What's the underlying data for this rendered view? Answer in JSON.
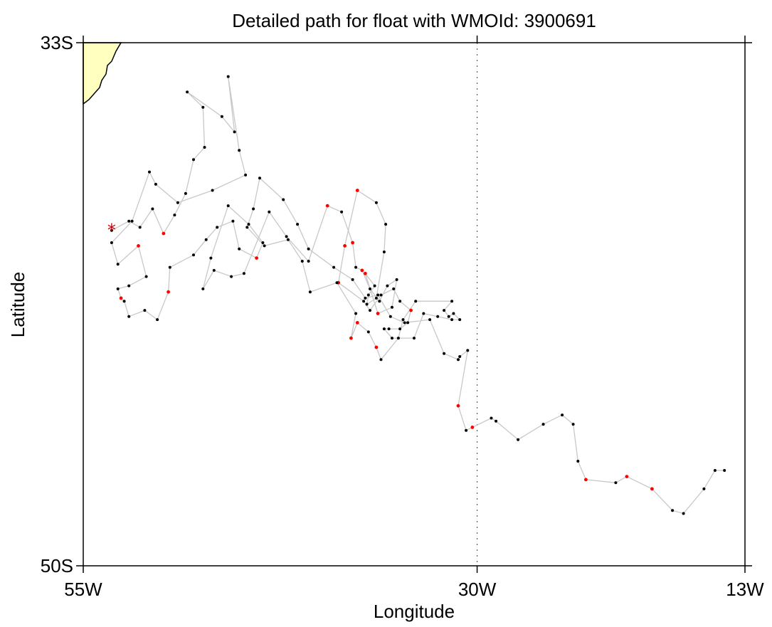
{
  "title": "Detailed path for float with WMOId: 3900691",
  "xlabel": "Longitude",
  "ylabel": "Latitude",
  "colors": {
    "land": "#ffffc0",
    "track_line": "#c8c8c8",
    "point_black": "#000000",
    "point_red": "#ff0000",
    "start_marker": "#cc0000",
    "meridian_line": "#555555"
  },
  "chart_data": {
    "type": "scatter",
    "xlim": [
      -55,
      -13
    ],
    "ylim": [
      -50,
      -33
    ],
    "x_ticks": [
      {
        "value": -55,
        "label": "55W"
      },
      {
        "value": -30,
        "label": "30W"
      },
      {
        "value": -13,
        "label": "13W"
      }
    ],
    "y_ticks": [
      {
        "value": -33,
        "label": "33S"
      },
      {
        "value": -50,
        "label": "50S"
      }
    ],
    "reference_meridian": -30,
    "start_marker": {
      "lon": -53.2,
      "lat": -39.1,
      "symbol": "*"
    },
    "track": [
      [
        -53.2,
        -39.1,
        "b"
      ],
      [
        -52.1,
        -38.8,
        "b"
      ],
      [
        -51.4,
        -39.0,
        "b"
      ],
      [
        -50.6,
        -38.4,
        "b"
      ],
      [
        -49.9,
        -39.2,
        "r"
      ],
      [
        -49.2,
        -38.6,
        "b"
      ],
      [
        -48.5,
        -37.9,
        "b"
      ],
      [
        -48.0,
        -36.8,
        "b"
      ],
      [
        -47.3,
        -36.4,
        "b"
      ],
      [
        -47.4,
        -35.1,
        "b"
      ],
      [
        -48.4,
        -34.6,
        "b"
      ],
      [
        -46.2,
        -35.4,
        "b"
      ],
      [
        -45.4,
        -35.9,
        "b"
      ],
      [
        -45.8,
        -34.1,
        "b"
      ],
      [
        -45.1,
        -36.5,
        "b"
      ],
      [
        -44.7,
        -37.3,
        "b"
      ],
      [
        -46.8,
        -37.8,
        "b"
      ],
      [
        -49.0,
        -38.2,
        "b"
      ],
      [
        -50.4,
        -37.6,
        "b"
      ],
      [
        -50.8,
        -37.2,
        "b"
      ],
      [
        -51.9,
        -38.8,
        "b"
      ],
      [
        -53.2,
        -39.5,
        "b"
      ],
      [
        -52.8,
        -40.2,
        "b"
      ],
      [
        -51.5,
        -39.6,
        "r"
      ],
      [
        -51.0,
        -40.6,
        "b"
      ],
      [
        -52.1,
        -40.9,
        "b"
      ],
      [
        -52.8,
        -41.0,
        "b"
      ],
      [
        -52.6,
        -41.3,
        "r"
      ],
      [
        -52.4,
        -41.4,
        "b"
      ],
      [
        -52.1,
        -41.9,
        "b"
      ],
      [
        -51.1,
        -41.7,
        "b"
      ],
      [
        -50.3,
        -42.0,
        "b"
      ],
      [
        -49.6,
        -41.1,
        "r"
      ],
      [
        -49.5,
        -40.3,
        "b"
      ],
      [
        -48.0,
        -39.9,
        "b"
      ],
      [
        -47.2,
        -39.4,
        "b"
      ],
      [
        -46.5,
        -39.0,
        "b"
      ],
      [
        -45.5,
        -38.8,
        "b"
      ],
      [
        -45.1,
        -39.7,
        "b"
      ],
      [
        -44.0,
        -40.0,
        "r"
      ],
      [
        -43.6,
        -39.5,
        "b"
      ],
      [
        -44.5,
        -38.9,
        "b"
      ],
      [
        -45.8,
        -38.3,
        "b"
      ],
      [
        -46.9,
        -40.0,
        "b"
      ],
      [
        -47.4,
        -41.0,
        "b"
      ],
      [
        -46.7,
        -40.4,
        "b"
      ],
      [
        -45.6,
        -40.6,
        "b"
      ],
      [
        -44.8,
        -40.5,
        "b"
      ],
      [
        -43.2,
        -38.5,
        "b"
      ],
      [
        -42.1,
        -39.3,
        "b"
      ],
      [
        -40.7,
        -40.1,
        "b"
      ],
      [
        -39.5,
        -38.3,
        "r"
      ],
      [
        -38.6,
        -38.5,
        "b"
      ],
      [
        -37.9,
        -39.5,
        "r"
      ],
      [
        -37.7,
        -40.3,
        "b"
      ],
      [
        -37.3,
        -40.4,
        "r"
      ],
      [
        -36.8,
        -41.0,
        "b"
      ],
      [
        -36.2,
        -41.4,
        "b"
      ],
      [
        -35.7,
        -40.9,
        "b"
      ],
      [
        -35.1,
        -40.7,
        "b"
      ],
      [
        -35.4,
        -41.6,
        "b"
      ],
      [
        -36.3,
        -41.8,
        "r"
      ],
      [
        -37.1,
        -40.5,
        "r"
      ],
      [
        -36.5,
        -40.9,
        "b"
      ],
      [
        -36.9,
        -41.2,
        "b"
      ],
      [
        -37.0,
        -41.5,
        "b"
      ],
      [
        -36.4,
        -41.3,
        "b"
      ],
      [
        -35.9,
        -39.8,
        "b"
      ],
      [
        -35.8,
        -38.9,
        "b"
      ],
      [
        -36.4,
        -38.2,
        "b"
      ],
      [
        -37.6,
        -37.8,
        "r"
      ],
      [
        -38.4,
        -39.6,
        "r"
      ],
      [
        -38.8,
        -40.8,
        "r"
      ],
      [
        -37.2,
        -41.4,
        "b"
      ],
      [
        -36.8,
        -41.7,
        "b"
      ],
      [
        -36.1,
        -41.2,
        "b"
      ],
      [
        -35.3,
        -41.0,
        "b"
      ],
      [
        -34.9,
        -41.4,
        "b"
      ],
      [
        -34.2,
        -41.7,
        "r"
      ],
      [
        -34.4,
        -42.1,
        "b"
      ],
      [
        -34.9,
        -42.3,
        "b"
      ],
      [
        -35.6,
        -42.3,
        "b"
      ],
      [
        -35.9,
        -42.3,
        "b"
      ],
      [
        -35.4,
        -42.6,
        "b"
      ],
      [
        -34.0,
        -42.6,
        "b"
      ],
      [
        -33.4,
        -41.8,
        "b"
      ],
      [
        -32.5,
        -41.9,
        "b"
      ],
      [
        -31.6,
        -42.0,
        "b"
      ],
      [
        -31.1,
        -42.0,
        "b"
      ],
      [
        -31.5,
        -41.8,
        "b"
      ],
      [
        -31.8,
        -41.9,
        "b"
      ],
      [
        -32.1,
        -41.7,
        "b"
      ],
      [
        -31.6,
        -41.4,
        "b"
      ],
      [
        -33.9,
        -41.4,
        "b"
      ],
      [
        -34.7,
        -42.0,
        "b"
      ],
      [
        -35.0,
        -42.6,
        "b"
      ],
      [
        -36.1,
        -43.3,
        "b"
      ],
      [
        -36.4,
        -42.9,
        "r"
      ],
      [
        -36.9,
        -42.4,
        "b"
      ],
      [
        -37.6,
        -42.1,
        "r"
      ],
      [
        -38.0,
        -42.6,
        "r"
      ],
      [
        -37.7,
        -41.8,
        "b"
      ],
      [
        -38.9,
        -40.8,
        "b"
      ],
      [
        -40.6,
        -41.1,
        "b"
      ],
      [
        -41.1,
        -40.1,
        "b"
      ],
      [
        -42.0,
        -39.4,
        "b"
      ],
      [
        -43.5,
        -39.6,
        "b"
      ],
      [
        -44.6,
        -39.0,
        "b"
      ],
      [
        -44.2,
        -38.4,
        "b"
      ],
      [
        -43.8,
        -37.4,
        "b"
      ],
      [
        -42.3,
        -38.1,
        "b"
      ],
      [
        -41.4,
        -38.9,
        "b"
      ],
      [
        -40.7,
        -39.7,
        "b"
      ],
      [
        -39.1,
        -40.3,
        "b"
      ],
      [
        -37.9,
        -40.7,
        "b"
      ],
      [
        -37.1,
        -41.3,
        "b"
      ],
      [
        -36.3,
        -41.2,
        "b"
      ],
      [
        -35.5,
        -41.9,
        "b"
      ],
      [
        -34.6,
        -42.1,
        "b"
      ],
      [
        -33.0,
        -42.0,
        "b"
      ],
      [
        -32.1,
        -43.1,
        "b"
      ],
      [
        -31.2,
        -43.3,
        "b"
      ],
      [
        -31.1,
        -43.2,
        "b"
      ],
      [
        -30.6,
        -43.0,
        "b"
      ],
      [
        -31.2,
        -44.8,
        "r"
      ],
      [
        -30.7,
        -45.6,
        "b"
      ],
      [
        -30.3,
        -45.5,
        "r"
      ],
      [
        -29.1,
        -45.2,
        "b"
      ],
      [
        -28.8,
        -45.3,
        "b"
      ],
      [
        -27.4,
        -45.9,
        "b"
      ],
      [
        -25.8,
        -45.4,
        "b"
      ],
      [
        -24.6,
        -45.1,
        "b"
      ],
      [
        -23.9,
        -45.4,
        "b"
      ],
      [
        -23.6,
        -46.6,
        "b"
      ],
      [
        -23.1,
        -47.2,
        "r"
      ],
      [
        -21.2,
        -47.3,
        "b"
      ],
      [
        -20.5,
        -47.1,
        "r"
      ],
      [
        -18.9,
        -47.5,
        "r"
      ],
      [
        -17.6,
        -48.2,
        "b"
      ],
      [
        -16.9,
        -48.3,
        "b"
      ],
      [
        -15.6,
        -47.5,
        "b"
      ],
      [
        -14.9,
        -46.9,
        "b"
      ],
      [
        -14.3,
        -46.9,
        "b"
      ]
    ]
  }
}
